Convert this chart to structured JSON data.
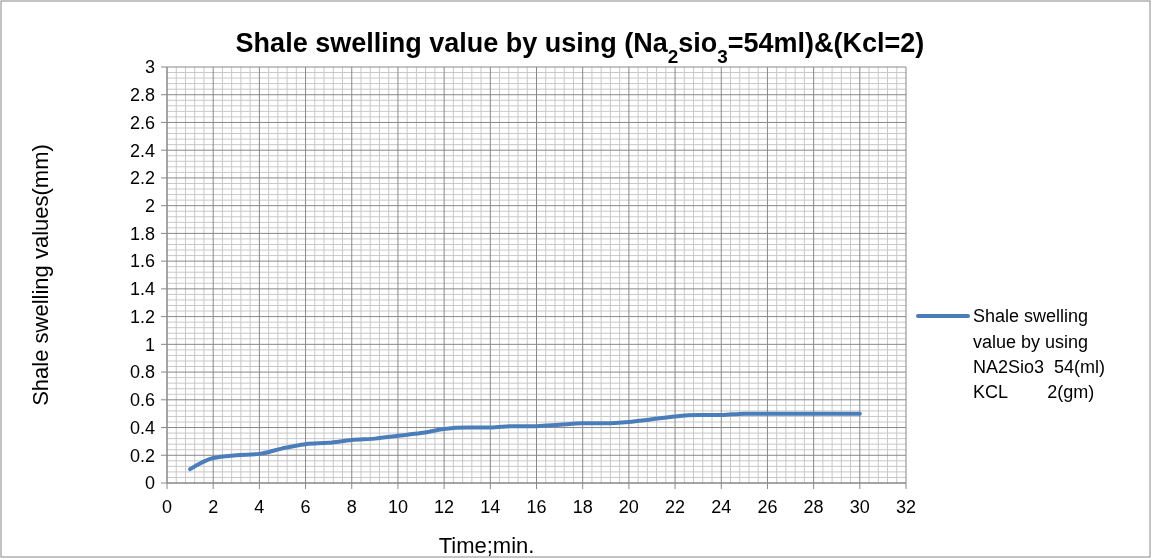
{
  "chart_data": {
    "type": "line",
    "title": "Shale swelling value by using (Na$_{2}$sio$_{3}$=54ml)&(Kcl=2)",
    "xlabel": "Time;min.",
    "ylabel": "Shale swelling values(mm)",
    "xlim": [
      0,
      32
    ],
    "xticks": [
      0,
      2,
      4,
      6,
      8,
      10,
      12,
      14,
      16,
      18,
      20,
      22,
      24,
      26,
      28,
      30,
      32
    ],
    "ylim": [
      0,
      3
    ],
    "yticks": [
      0,
      0.2,
      0.4,
      0.6,
      0.8,
      1,
      1.2,
      1.4,
      1.6,
      1.8,
      2,
      2.2,
      2.4,
      2.6,
      2.8,
      3
    ],
    "grid": true,
    "legend": "right",
    "marker": "none",
    "line_style": "solid",
    "x": [
      1,
      2,
      3,
      4,
      5,
      6,
      7,
      8,
      9,
      10,
      11,
      12,
      13,
      14,
      15,
      16,
      17,
      18,
      19,
      20,
      21,
      22,
      23,
      24,
      25,
      26,
      27,
      28,
      29,
      30
    ],
    "series": [
      {
        "name": "Shale swelling\nvalue by using\nNA2Sio3  54(ml)\nKCL        2(gm)",
        "color": "#4a7ebb",
        "values": [
          0.1,
          0.18,
          0.2,
          0.21,
          0.25,
          0.28,
          0.29,
          0.31,
          0.32,
          0.34,
          0.36,
          0.39,
          0.4,
          0.4,
          0.41,
          0.41,
          0.42,
          0.43,
          0.43,
          0.44,
          0.46,
          0.48,
          0.49,
          0.49,
          0.5,
          0.5,
          0.5,
          0.5,
          0.5,
          0.5
        ]
      }
    ]
  }
}
